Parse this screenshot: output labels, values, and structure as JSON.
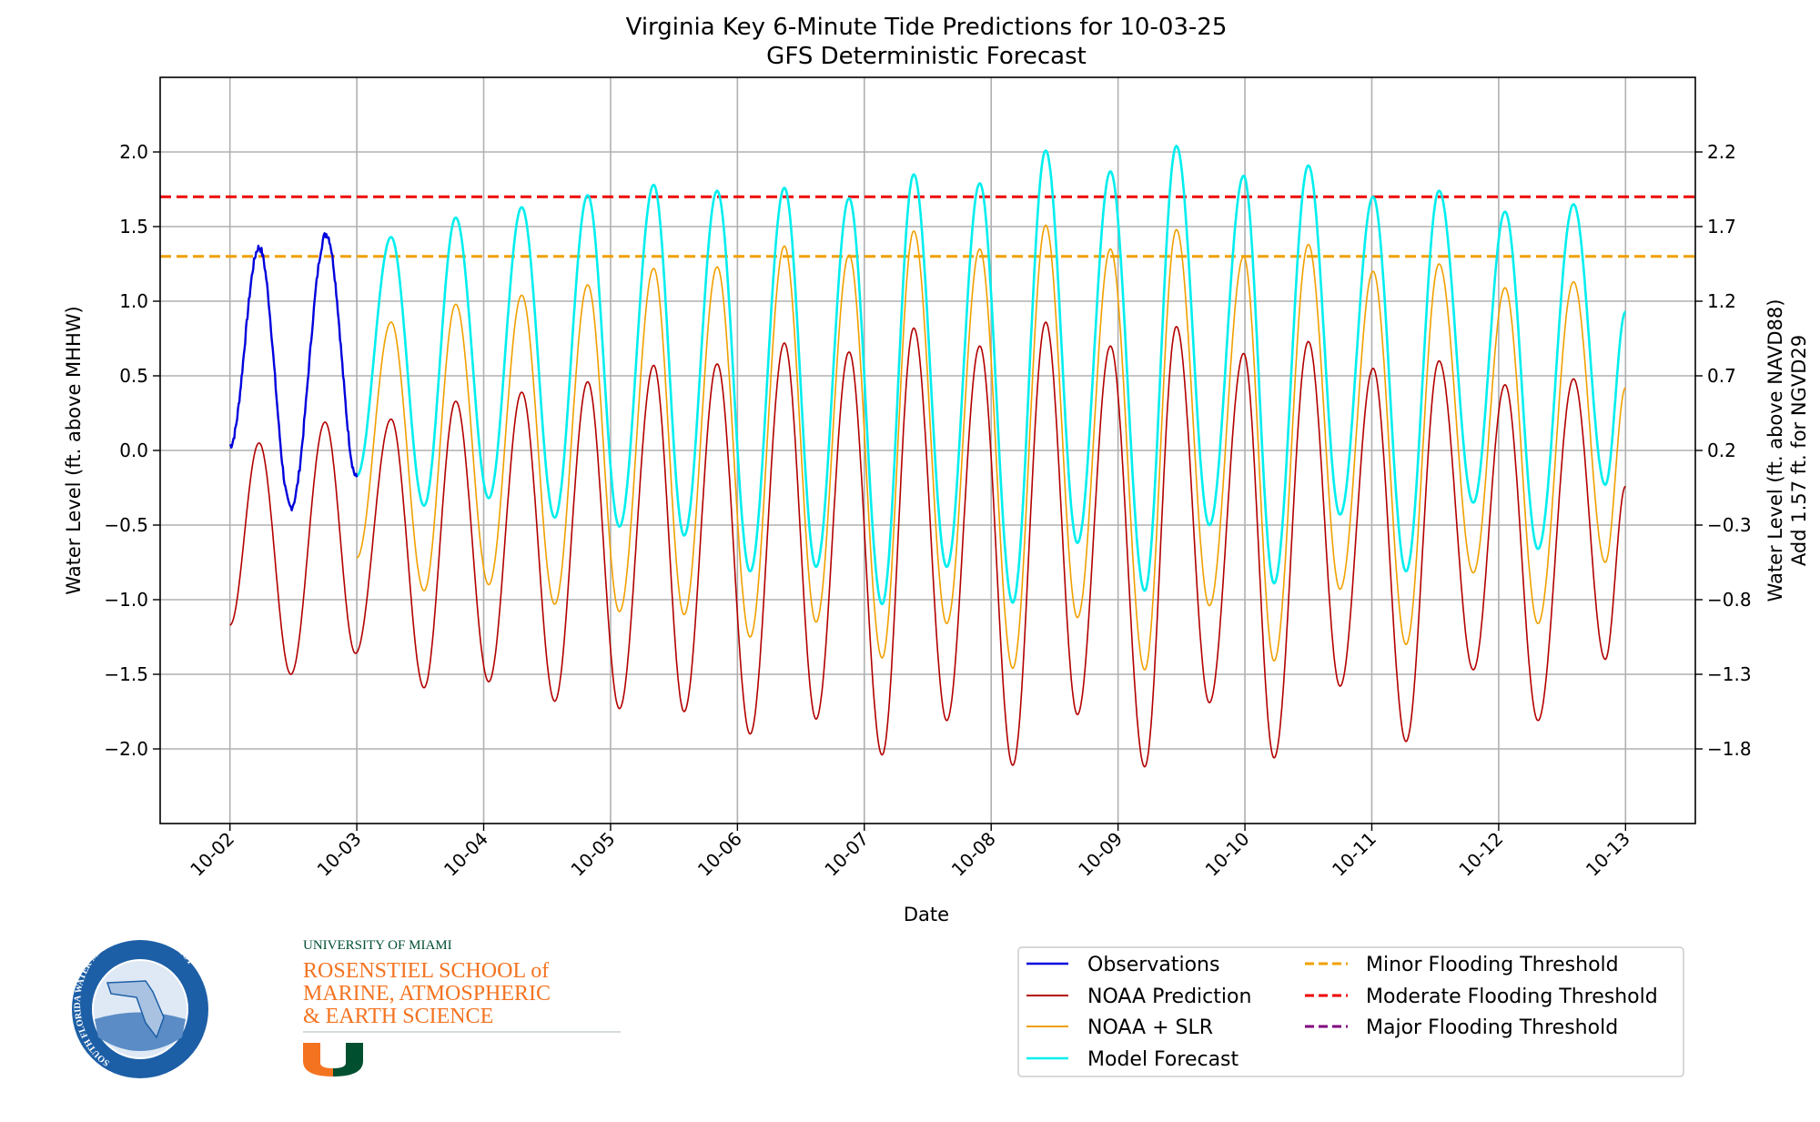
{
  "chart_data": {
    "type": "line",
    "title": "Virginia Key 6-Minute Tide Predictions for 10-03-25",
    "subtitle": "GFS Deterministic Forecast",
    "xlabel": "Date",
    "ylabel": "Water Level (ft. above MHHW)",
    "ylabel_right": [
      "Water Level (ft. above NAVD88)",
      "Add 1.57 ft. for NGVD29"
    ],
    "x_unit": "days since 10-02",
    "xlim": [
      -0.55,
      11.55
    ],
    "ylim": [
      -2.5,
      2.5
    ],
    "x_ticks": [
      0,
      1,
      2,
      3,
      4,
      5,
      6,
      7,
      8,
      9,
      10,
      11
    ],
    "x_tick_labels": [
      "10-02",
      "10-03",
      "10-04",
      "10-05",
      "10-06",
      "10-07",
      "10-08",
      "10-09",
      "10-10",
      "10-11",
      "10-12",
      "10-13"
    ],
    "y_ticks": [
      -2.0,
      -1.5,
      -1.0,
      -0.5,
      0.0,
      0.5,
      1.0,
      1.5,
      2.0
    ],
    "y_tick_labels": [
      "−2.0",
      "−1.5",
      "−1.0",
      "−0.5",
      "0.0",
      "0.5",
      "1.0",
      "1.5",
      "2.0"
    ],
    "y_right_tick_labels": [
      "−1.8",
      "−1.3",
      "−0.8",
      "−0.3",
      "0.2",
      "0.7",
      "1.2",
      "1.7",
      "2.2"
    ],
    "grid": true,
    "legend_placement": "below-right",
    "series": [
      {
        "name": "Observations",
        "color": "#0000dd",
        "width": 2.4,
        "noisy": true,
        "points": [
          [
            0,
            0.03
          ],
          [
            0.23,
            1.36
          ],
          [
            0.48,
            -0.38
          ],
          [
            0.76,
            1.45
          ],
          [
            1.0,
            -0.18
          ]
        ]
      },
      {
        "name": "NOAA Prediction",
        "color": "#b30000",
        "width": 1.6,
        "points": [
          [
            0,
            -1.17
          ],
          [
            0.23,
            0.05
          ],
          [
            0.48,
            -1.5
          ],
          [
            0.75,
            0.19
          ],
          [
            0.99,
            -1.36
          ],
          [
            1.27,
            0.21
          ],
          [
            1.53,
            -1.59
          ],
          [
            1.78,
            0.33
          ],
          [
            2.04,
            -1.55
          ],
          [
            2.3,
            0.39
          ],
          [
            2.56,
            -1.68
          ],
          [
            2.82,
            0.46
          ],
          [
            3.07,
            -1.73
          ],
          [
            3.34,
            0.57
          ],
          [
            3.58,
            -1.75
          ],
          [
            3.84,
            0.58
          ],
          [
            4.1,
            -1.9
          ],
          [
            4.37,
            0.72
          ],
          [
            4.62,
            -1.8
          ],
          [
            4.88,
            0.66
          ],
          [
            5.14,
            -2.04
          ],
          [
            5.39,
            0.82
          ],
          [
            5.65,
            -1.81
          ],
          [
            5.91,
            0.7
          ],
          [
            6.17,
            -2.11
          ],
          [
            6.43,
            0.86
          ],
          [
            6.68,
            -1.77
          ],
          [
            6.94,
            0.7
          ],
          [
            7.21,
            -2.12
          ],
          [
            7.46,
            0.83
          ],
          [
            7.72,
            -1.69
          ],
          [
            7.99,
            0.65
          ],
          [
            8.23,
            -2.06
          ],
          [
            8.5,
            0.73
          ],
          [
            8.75,
            -1.58
          ],
          [
            9.01,
            0.55
          ],
          [
            9.27,
            -1.95
          ],
          [
            9.53,
            0.6
          ],
          [
            9.8,
            -1.47
          ],
          [
            10.05,
            0.44
          ],
          [
            10.31,
            -1.81
          ],
          [
            10.59,
            0.48
          ],
          [
            10.84,
            -1.4
          ],
          [
            11.0,
            -0.24
          ]
        ]
      },
      {
        "name": "NOAA + SLR",
        "color": "#f0a000",
        "width": 1.6,
        "points": [
          [
            1.0,
            -0.72
          ],
          [
            1.27,
            0.86
          ],
          [
            1.53,
            -0.94
          ],
          [
            1.78,
            0.98
          ],
          [
            2.04,
            -0.9
          ],
          [
            2.3,
            1.04
          ],
          [
            2.56,
            -1.03
          ],
          [
            2.82,
            1.11
          ],
          [
            3.07,
            -1.08
          ],
          [
            3.34,
            1.22
          ],
          [
            3.58,
            -1.1
          ],
          [
            3.84,
            1.23
          ],
          [
            4.1,
            -1.25
          ],
          [
            4.37,
            1.37
          ],
          [
            4.62,
            -1.15
          ],
          [
            4.88,
            1.31
          ],
          [
            5.14,
            -1.39
          ],
          [
            5.39,
            1.47
          ],
          [
            5.65,
            -1.16
          ],
          [
            5.91,
            1.35
          ],
          [
            6.17,
            -1.46
          ],
          [
            6.43,
            1.51
          ],
          [
            6.68,
            -1.12
          ],
          [
            6.94,
            1.35
          ],
          [
            7.21,
            -1.47
          ],
          [
            7.46,
            1.48
          ],
          [
            7.72,
            -1.04
          ],
          [
            7.99,
            1.3
          ],
          [
            8.23,
            -1.41
          ],
          [
            8.5,
            1.38
          ],
          [
            8.75,
            -0.93
          ],
          [
            9.01,
            1.2
          ],
          [
            9.27,
            -1.3
          ],
          [
            9.53,
            1.25
          ],
          [
            9.8,
            -0.82
          ],
          [
            10.05,
            1.09
          ],
          [
            10.31,
            -1.16
          ],
          [
            10.59,
            1.13
          ],
          [
            10.84,
            -0.75
          ],
          [
            11.0,
            0.42
          ]
        ]
      },
      {
        "name": "Model Forecast",
        "color": "#00eeee",
        "width": 2.6,
        "points": [
          [
            1.0,
            -0.17
          ],
          [
            1.27,
            1.43
          ],
          [
            1.53,
            -0.37
          ],
          [
            1.78,
            1.56
          ],
          [
            2.04,
            -0.32
          ],
          [
            2.3,
            1.63
          ],
          [
            2.56,
            -0.45
          ],
          [
            2.82,
            1.71
          ],
          [
            3.07,
            -0.51
          ],
          [
            3.34,
            1.78
          ],
          [
            3.58,
            -0.57
          ],
          [
            3.84,
            1.74
          ],
          [
            4.1,
            -0.81
          ],
          [
            4.37,
            1.76
          ],
          [
            4.62,
            -0.78
          ],
          [
            4.88,
            1.69
          ],
          [
            5.14,
            -1.03
          ],
          [
            5.39,
            1.85
          ],
          [
            5.65,
            -0.78
          ],
          [
            5.91,
            1.79
          ],
          [
            6.17,
            -1.02
          ],
          [
            6.43,
            2.01
          ],
          [
            6.68,
            -0.62
          ],
          [
            6.94,
            1.87
          ],
          [
            7.21,
            -0.94
          ],
          [
            7.46,
            2.04
          ],
          [
            7.72,
            -0.5
          ],
          [
            7.99,
            1.84
          ],
          [
            8.23,
            -0.89
          ],
          [
            8.5,
            1.91
          ],
          [
            8.75,
            -0.43
          ],
          [
            9.01,
            1.7
          ],
          [
            9.27,
            -0.81
          ],
          [
            9.53,
            1.74
          ],
          [
            9.8,
            -0.35
          ],
          [
            10.05,
            1.6
          ],
          [
            10.31,
            -0.66
          ],
          [
            10.59,
            1.65
          ],
          [
            10.84,
            -0.23
          ],
          [
            11.0,
            0.93
          ]
        ]
      }
    ],
    "thresholds": [
      {
        "name": "Minor Flooding Threshold",
        "color": "#f0a000",
        "value": 1.3
      },
      {
        "name": "Moderate Flooding Threshold",
        "color": "#ee0000",
        "value": 1.7
      },
      {
        "name": "Major Flooding Threshold",
        "color": "#800080",
        "value": null
      }
    ]
  },
  "logos": {
    "sfwmd_text": "SOUTH FLORIDA WATER MANAGEMENT DISTRICT",
    "sfwmd_subtext": "PROTECTORS OF THE EVERGLADES SINCE 1949",
    "um_line1": "UNIVERSITY OF MIAMI",
    "um_line2": "ROSENSTIEL SCHOOL of",
    "um_line3": "MARINE, ATMOSPHERIC",
    "um_line4": "& EARTH SCIENCE",
    "colors": {
      "um_orange": "#f47321",
      "um_green": "#005030",
      "sfwmd_blue": "#1d5fa6"
    }
  }
}
